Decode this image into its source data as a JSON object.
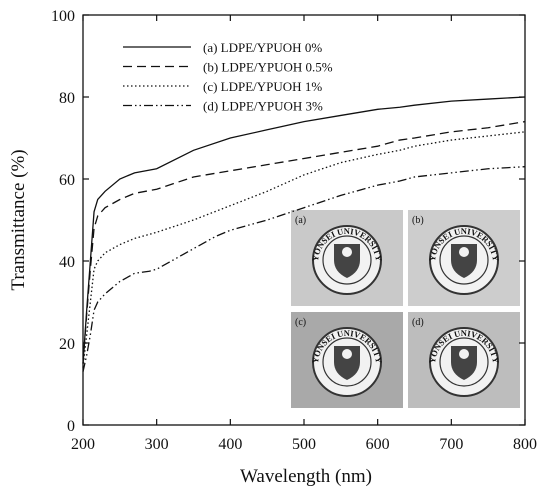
{
  "chart_data": {
    "type": "line",
    "xlabel": "Wavelength (nm)",
    "ylabel": "Transmittance (%)",
    "xlim": [
      200,
      800
    ],
    "xticks": [
      200,
      300,
      400,
      500,
      600,
      700,
      800
    ],
    "ylim": [
      0,
      100
    ],
    "yticks": [
      0,
      20,
      40,
      60,
      80,
      100
    ],
    "legend": "upper left",
    "series": [
      {
        "name": "(a) LDPE/YPUOH 0%",
        "color": "#111111",
        "dash": "solid",
        "x": [
          200,
          205,
          210,
          215,
          220,
          230,
          250,
          270,
          300,
          350,
          400,
          450,
          500,
          550,
          600,
          630,
          650,
          700,
          750,
          800
        ],
        "values": [
          15,
          28,
          40,
          52,
          55,
          57,
          60,
          61.5,
          62.5,
          67,
          70,
          72,
          74,
          75.5,
          77,
          77.5,
          78,
          79,
          79.5,
          80
        ]
      },
      {
        "name": "(b) LDPE/YPUOH 0.5%",
        "color": "#111111",
        "dash": "dashed",
        "x": [
          200,
          205,
          210,
          215,
          220,
          230,
          250,
          270,
          300,
          350,
          400,
          450,
          500,
          550,
          600,
          630,
          650,
          700,
          750,
          800
        ],
        "values": [
          15,
          27,
          38,
          48,
          51,
          53,
          55,
          56.5,
          57.5,
          60.5,
          62,
          63.5,
          65,
          66.5,
          68,
          69.5,
          70,
          71.5,
          72.5,
          74
        ]
      },
      {
        "name": "(c) LDPE/YPUOH 1%",
        "color": "#111111",
        "dash": "dotted",
        "x": [
          200,
          205,
          210,
          215,
          220,
          230,
          250,
          270,
          300,
          350,
          400,
          450,
          500,
          550,
          600,
          630,
          650,
          700,
          750,
          800
        ],
        "values": [
          14,
          22,
          30,
          38,
          40,
          42,
          44,
          45.5,
          47,
          50,
          53.5,
          57,
          61,
          64,
          66,
          67,
          68,
          69.5,
          70.5,
          71.5
        ]
      },
      {
        "name": "(d) LDPE/YPUOH 3%",
        "color": "#111111",
        "dash": "dashdot",
        "x": [
          200,
          205,
          210,
          215,
          220,
          230,
          250,
          270,
          290,
          300,
          350,
          380,
          400,
          450,
          500,
          550,
          600,
          630,
          650,
          700,
          750,
          800
        ],
        "values": [
          13,
          17,
          22,
          28,
          30,
          32,
          35,
          37,
          37.5,
          38,
          43,
          46,
          47.5,
          50,
          53,
          56,
          58.5,
          59.5,
          60.5,
          61.5,
          62.5,
          63
        ]
      }
    ],
    "inset": {
      "panels": [
        {
          "label": "(a)",
          "emblem": "YONSEI UNIVERSITY"
        },
        {
          "label": "(b)",
          "emblem": "YONSEI UNIVERSITY"
        },
        {
          "label": "(c)",
          "emblem": "YONSEI UNIVERSITY"
        },
        {
          "label": "(d)",
          "emblem": "YONSEI UNIVERSITY"
        }
      ]
    }
  }
}
